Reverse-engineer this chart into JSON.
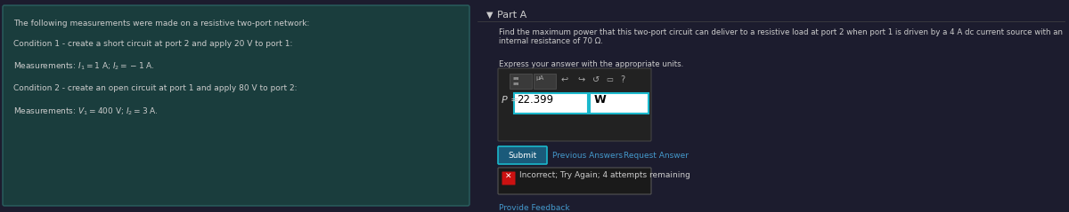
{
  "fig_w": 12.0,
  "fig_h": 2.39,
  "dpi": 100,
  "bg_color": "#1c1c2e",
  "left_panel_bg": "#1a3d3d",
  "left_panel_border": "#2a6060",
  "left_text_color": "#cccccc",
  "right_text_color": "#cccccc",
  "title_left": "The following measurements were made on a resistive two-port network:",
  "cond1": "Condition 1 - create a short circuit at port 2 and apply 20 V to port 1:",
  "meas1": "Measurements: $I_1 = 1$ A; $I_2 = -1$ A.",
  "cond2": "Condition 2 - create an open circuit at port 1 and apply 80 V to port 2:",
  "meas2": "Measurements: $V_1 = 400$ V; $I_2 = 3$ A.",
  "part_a_label": "Part A",
  "question_text": "Find the maximum power that this two-port circuit can deliver to a resistive load at port 2 when port 1 is driven by a 4 A dc current source with an internal resistance of 70 Ω.",
  "express_text": "Express your answer with the appropriate units.",
  "p_label": "P =",
  "p_value": "22.399",
  "p_unit": "W",
  "submit_btn": "Submit",
  "prev_answers": "Previous Answers",
  "req_answer": "Request Answer",
  "incorrect_msg": "Incorrect; Try Again; 4 attempts remaining",
  "provide_feedback": "Provide Feedback",
  "input_bg": "#ffffff",
  "input_border": "#1ab8cc",
  "value_text": "#000000",
  "submit_btn_bg": "#1a5a7a",
  "submit_btn_border": "#1ab8cc",
  "submit_btn_text": "#ffffff",
  "incorrect_box_bg": "#1a1a1a",
  "incorrect_box_border": "#555555",
  "link_color": "#4499cc",
  "toolbar_outer_bg": "#222222",
  "toolbar_outer_border": "#444444",
  "toolbar_icon_bg": "#3a3a3a",
  "toolbar_icon_border": "#555555",
  "icon_text_color": "#aaaaaa",
  "x_icon_color": "#cc2222"
}
